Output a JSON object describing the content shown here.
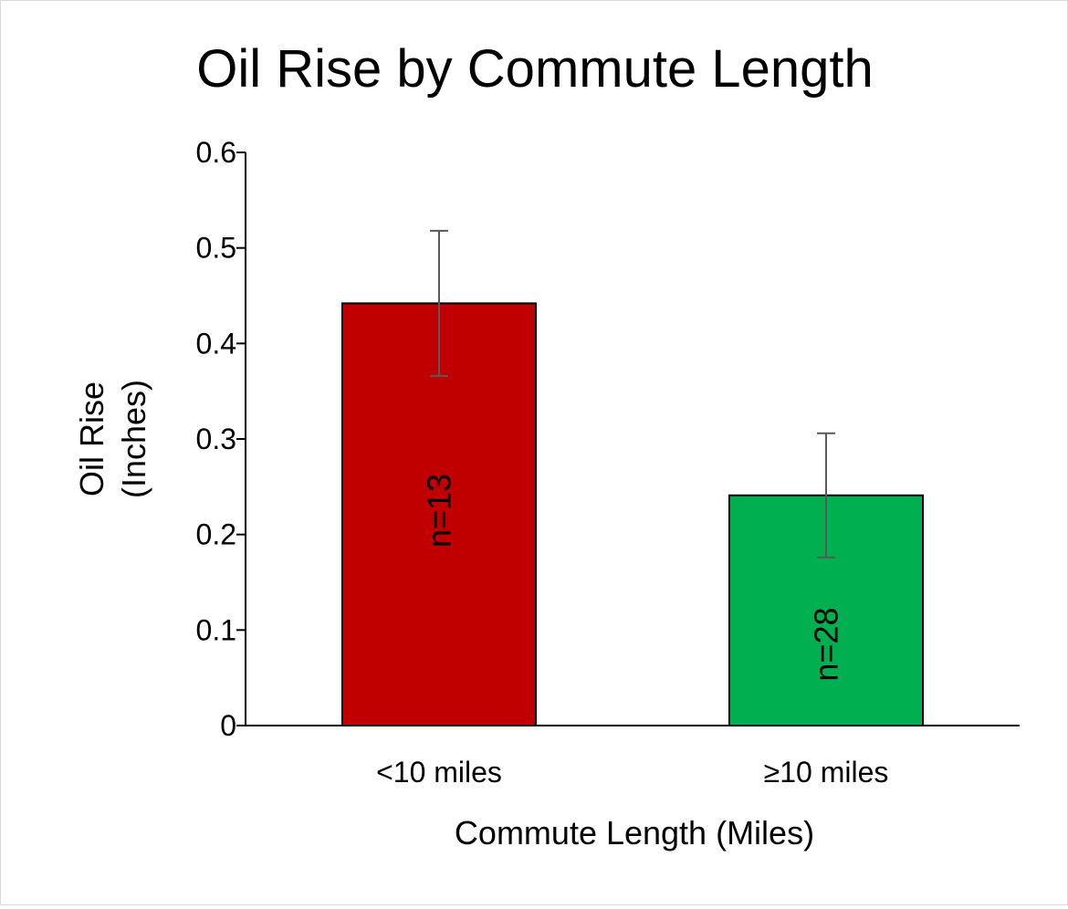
{
  "chart_data": {
    "type": "bar",
    "title": "Oil Rise by Commute Length",
    "xlabel": "Commute Length (Miles)",
    "ylabel": [
      "Oil Rise",
      "(Inches)"
    ],
    "ylim": [
      0,
      0.6
    ],
    "yticks": [
      0,
      0.1,
      0.2,
      0.3,
      0.4,
      0.5,
      0.6
    ],
    "ytick_labels": [
      "0",
      "0.1",
      "0.2",
      "0.3",
      "0.4",
      "0.5",
      "0.6"
    ],
    "categories": [
      "<10 miles",
      "≥10 miles"
    ],
    "values": [
      0.442,
      0.241
    ],
    "error": [
      0.076,
      0.065
    ],
    "bar_labels": [
      "n=13",
      "n=28"
    ],
    "bar_colors": [
      "#c00000",
      "#00b050"
    ],
    "grid": false,
    "legend": "none"
  }
}
